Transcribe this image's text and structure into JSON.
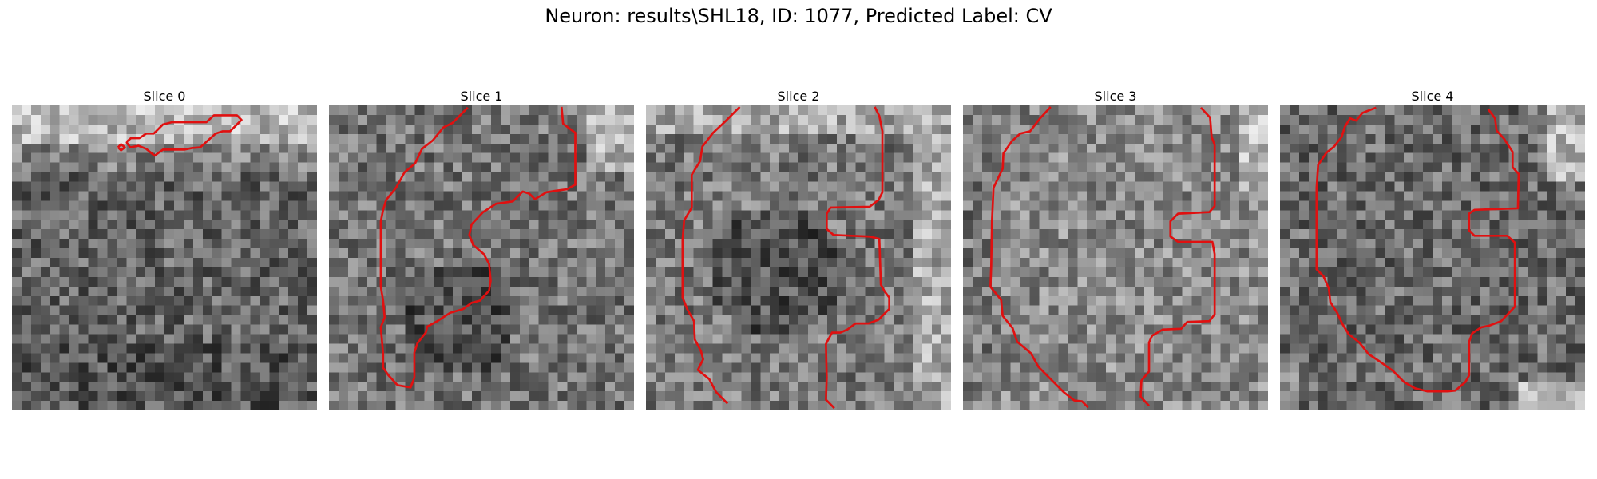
{
  "figure": {
    "title": "Neuron: results\\SHL18, ID: 1077, Predicted Label: CV",
    "contour_color": "#e01010"
  },
  "slices": [
    {
      "label": "Slice 0",
      "contours": [
        [
          [
            13.9,
            5.5
          ],
          [
            14.3,
            5.1
          ],
          [
            14.8,
            5.5
          ],
          [
            14.3,
            5.9
          ],
          [
            13.9,
            5.5
          ]
        ],
        [
          [
            15,
            4.8
          ],
          [
            15.6,
            4.3
          ],
          [
            16.7,
            4.3
          ],
          [
            17.6,
            3.7
          ],
          [
            18.6,
            3.7
          ],
          [
            19.8,
            2.5
          ],
          [
            21,
            2.2
          ],
          [
            25.5,
            2.2
          ],
          [
            26.5,
            1.3
          ],
          [
            29.5,
            1.3
          ],
          [
            30.1,
            1.9
          ],
          [
            29.5,
            2.5
          ],
          [
            28.6,
            3.4
          ],
          [
            27.6,
            3.4
          ],
          [
            26.7,
            3.7
          ],
          [
            24.7,
            5.5
          ],
          [
            23.6,
            5.6
          ],
          [
            22.6,
            5.8
          ],
          [
            19.8,
            5.8
          ],
          [
            18.7,
            6.6
          ],
          [
            17.6,
            5.7
          ],
          [
            16.6,
            5.3
          ],
          [
            15.5,
            5.5
          ],
          [
            15,
            4.8
          ]
        ]
      ]
    },
    {
      "label": "Slice 1",
      "contours": [
        [
          [
            18.2,
            0.3
          ],
          [
            16.2,
            2.3
          ],
          [
            15,
            2.9
          ],
          [
            13.6,
            4.6
          ],
          [
            12.2,
            5.7
          ],
          [
            11.3,
            7.6
          ],
          [
            9.9,
            8.8
          ],
          [
            8.8,
            10.8
          ],
          [
            7.5,
            12.4
          ],
          [
            7.1,
            13.7
          ],
          [
            6.8,
            15.2
          ],
          [
            6.8,
            23.8
          ],
          [
            7.1,
            25.6
          ],
          [
            7.3,
            27.8
          ],
          [
            6.8,
            29.1
          ],
          [
            7.1,
            32.6
          ],
          [
            7.1,
            34.4
          ],
          [
            7.8,
            35.4
          ],
          [
            9,
            36.7
          ],
          [
            10.7,
            37
          ],
          [
            11.2,
            35.7
          ],
          [
            11.2,
            32.4
          ],
          [
            11.6,
            31.2
          ],
          [
            12.7,
            29.8
          ],
          [
            12.9,
            29
          ],
          [
            14.2,
            28.3
          ],
          [
            15.9,
            27.2
          ],
          [
            17.6,
            26.7
          ],
          [
            18.7,
            25.9
          ],
          [
            19.8,
            25.6
          ],
          [
            21,
            24.3
          ],
          [
            21.2,
            23
          ],
          [
            21,
            20.8
          ],
          [
            20.3,
            19.5
          ],
          [
            18.9,
            18.3
          ],
          [
            18.4,
            17
          ],
          [
            18.7,
            15.6
          ],
          [
            20.2,
            14
          ],
          [
            21.9,
            12.9
          ],
          [
            24.1,
            12.6
          ],
          [
            25.4,
            11.3
          ],
          [
            26.3,
            11.6
          ],
          [
            27,
            12.3
          ],
          [
            28.5,
            11.4
          ],
          [
            29.7,
            11.2
          ],
          [
            31.2,
            11
          ],
          [
            32.3,
            10.4
          ],
          [
            32.3,
            3.6
          ],
          [
            30.7,
            2.4
          ],
          [
            30.5,
            0.2
          ]
        ]
      ]
    },
    {
      "label": "Slice 2",
      "contours": [
        [
          [
            12.3,
            0.2
          ],
          [
            10.4,
            2.1
          ],
          [
            8.8,
            3.6
          ],
          [
            7.4,
            5.4
          ],
          [
            7.1,
            7.3
          ],
          [
            6,
            9.1
          ],
          [
            6,
            13.4
          ],
          [
            5,
            15.1
          ],
          [
            4.8,
            17.7
          ],
          [
            4.8,
            22.3
          ],
          [
            4.8,
            25.2
          ],
          [
            5.4,
            26.7
          ],
          [
            6.3,
            28.3
          ],
          [
            6.4,
            30.7
          ],
          [
            7.2,
            32.2
          ],
          [
            7.5,
            33.3
          ],
          [
            6.8,
            34.7
          ],
          [
            8.3,
            35.9
          ],
          [
            9.2,
            37.6
          ],
          [
            10.7,
            39.1
          ]
        ],
        [
          [
            30,
            0.2
          ],
          [
            30.6,
            1.4
          ],
          [
            31,
            3.4
          ],
          [
            31,
            11.4
          ],
          [
            30.5,
            12.4
          ],
          [
            29.3,
            13.3
          ],
          [
            24.2,
            13.4
          ],
          [
            23.7,
            14.2
          ],
          [
            23.7,
            16.2
          ],
          [
            24.6,
            17
          ],
          [
            29.3,
            17.2
          ],
          [
            30.6,
            17.5
          ],
          [
            30.8,
            23.5
          ],
          [
            31.3,
            24.4
          ],
          [
            31.9,
            25.2
          ],
          [
            31.9,
            26.7
          ],
          [
            30.5,
            28.1
          ],
          [
            29.2,
            28.6
          ],
          [
            27.5,
            28.6
          ],
          [
            27.2,
            28.8
          ],
          [
            26.4,
            29.4
          ],
          [
            25.5,
            29.8
          ],
          [
            24.4,
            29.8
          ],
          [
            23.8,
            30.9
          ],
          [
            23.6,
            31.3
          ],
          [
            23.7,
            35.7
          ],
          [
            23.6,
            38.6
          ],
          [
            24.7,
            39.7
          ]
        ]
      ]
    },
    {
      "label": "Slice 3",
      "contours": [
        [
          [
            11.5,
            0.2
          ],
          [
            10.1,
            1.7
          ],
          [
            8.8,
            3.4
          ],
          [
            7.5,
            3.7
          ],
          [
            6.4,
            4.7
          ],
          [
            5.3,
            6.3
          ],
          [
            5.2,
            8.3
          ],
          [
            4,
            10.8
          ],
          [
            3.8,
            15.2
          ],
          [
            3.7,
            21
          ],
          [
            3.6,
            23.8
          ],
          [
            5,
            25.5
          ],
          [
            5.2,
            27.6
          ],
          [
            6.5,
            29.2
          ],
          [
            7.1,
            31
          ],
          [
            8.9,
            32.5
          ],
          [
            9.9,
            34.3
          ],
          [
            11.3,
            35.7
          ],
          [
            13.2,
            37.6
          ],
          [
            14.6,
            38.7
          ],
          [
            15.6,
            38.8
          ],
          [
            16.4,
            39.6
          ]
        ],
        [
          [
            31.2,
            0.3
          ],
          [
            32.4,
            1.6
          ],
          [
            32.6,
            4.1
          ],
          [
            33,
            5.2
          ],
          [
            33,
            13.2
          ],
          [
            32.3,
            14
          ],
          [
            28.2,
            14.2
          ],
          [
            27.2,
            15.2
          ],
          [
            27.2,
            17.2
          ],
          [
            28.2,
            17.9
          ],
          [
            32.7,
            17.9
          ],
          [
            33,
            19.5
          ],
          [
            33,
            27.4
          ],
          [
            32.3,
            28.3
          ],
          [
            29.4,
            28.4
          ],
          [
            28.6,
            29.3
          ],
          [
            26.2,
            29.4
          ],
          [
            24.8,
            30.2
          ],
          [
            24.4,
            31.1
          ],
          [
            24.4,
            34.9
          ],
          [
            23.4,
            36.1
          ],
          [
            23.3,
            38.2
          ],
          [
            24.4,
            39.4
          ]
        ]
      ]
    },
    {
      "label": "Slice 4",
      "contours": [
        [
          [
            12.6,
            0.3
          ],
          [
            11.8,
            0.6
          ],
          [
            10.8,
            1
          ],
          [
            10,
            2
          ],
          [
            9.2,
            1.7
          ],
          [
            8.5,
            2.8
          ],
          [
            8.1,
            4.1
          ],
          [
            7.1,
            5.4
          ],
          [
            6.1,
            6.2
          ],
          [
            5,
            7.8
          ],
          [
            4.8,
            10.8
          ],
          [
            4.8,
            13.2
          ],
          [
            4.8,
            17.8
          ],
          [
            4.8,
            21.5
          ],
          [
            5.7,
            22.4
          ],
          [
            6.4,
            24
          ],
          [
            6.6,
            25.8
          ],
          [
            7.5,
            27.2
          ],
          [
            8.2,
            28.7
          ],
          [
            9,
            30
          ],
          [
            10.4,
            31.1
          ],
          [
            11.6,
            32.6
          ],
          [
            13.1,
            33.6
          ],
          [
            14.8,
            34.8
          ],
          [
            16.3,
            36.3
          ],
          [
            17.7,
            37.1
          ],
          [
            19.3,
            37.5
          ],
          [
            22,
            37.5
          ],
          [
            23,
            37.4
          ],
          [
            24.3,
            36.3
          ],
          [
            24.8,
            35.4
          ],
          [
            24.8,
            31
          ],
          [
            25.2,
            29.9
          ],
          [
            26.4,
            29.1
          ],
          [
            27.4,
            28.9
          ],
          [
            29,
            28.3
          ],
          [
            30.8,
            26.4
          ],
          [
            30.8,
            18
          ],
          [
            29.8,
            17.1
          ],
          [
            25.5,
            17.1
          ],
          [
            24.8,
            16.4
          ],
          [
            24.8,
            14.2
          ],
          [
            25.5,
            13.7
          ],
          [
            31.2,
            13.5
          ],
          [
            31.3,
            9
          ],
          [
            30.5,
            8.1
          ],
          [
            30.5,
            6.1
          ],
          [
            29.4,
            4.4
          ],
          [
            28.4,
            3.3
          ],
          [
            28.2,
            1.7
          ],
          [
            27.3,
            0.5
          ]
        ]
      ]
    }
  ]
}
